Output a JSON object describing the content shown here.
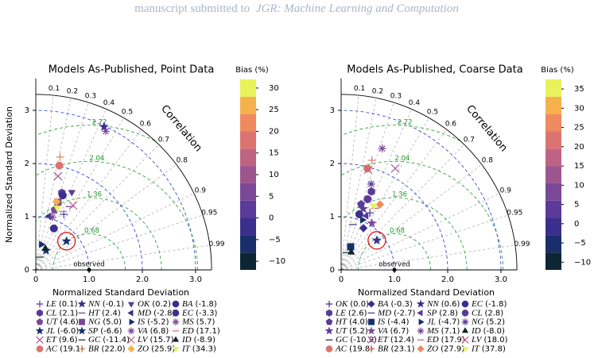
{
  "header": {
    "text": "manuscript submitted to",
    "journal": "JGR: Machine Learning and Computation"
  },
  "chart_data": [
    {
      "type": "taylor",
      "title": "Models As-Published, Point Data",
      "xlabel": "Normalized Standard Deviation",
      "ylabel": "Normalized Standard Deviation",
      "corr_label": "Correlation",
      "colorbar_label": "Bias (%)",
      "observed_label": "observed",
      "observed": 1,
      "highlight": "SP",
      "xlim": [
        0,
        3.3
      ],
      "ylim": [
        0,
        3.6
      ],
      "xticks": [
        0,
        {
          "value": 1,
          "label": "1.0"
        },
        {
          "value": 2,
          "label": "2.0"
        },
        {
          "value": 3,
          "label": "3.0"
        }
      ],
      "yticks": [
        0,
        1,
        2,
        3
      ],
      "corr_ticks": [
        0.1,
        0.2,
        0.3,
        0.4,
        0.5,
        0.6,
        0.7,
        0.8,
        0.9,
        0.95,
        0.99
      ],
      "rmsd_ticks": [
        0.68,
        1.36,
        2.04,
        2.72
      ],
      "colorbar": {
        "edges": [
          -12,
          -8,
          -4,
          0,
          4,
          8,
          12,
          16,
          20,
          24,
          28,
          32
        ],
        "colors": [
          "#0c2733",
          "#182f6b",
          "#3b2e8c",
          "#5b3a9a",
          "#7a4896",
          "#9d5590",
          "#be6482",
          "#db7470",
          "#ef8a5e",
          "#f6b14d",
          "#e8f25a"
        ],
        "ticks": [
          {
            "value": -10,
            "label": "−10"
          },
          {
            "value": -5,
            "label": "−5"
          },
          0,
          5,
          10,
          15,
          20,
          25,
          30
        ]
      },
      "series": [
        {
          "name": "LE",
          "bias": 0.1,
          "bias_label": "(0.1)",
          "std": 1.17,
          "corr": 0.45,
          "marker": "plus"
        },
        {
          "name": "CL",
          "bias": 2.1,
          "bias_label": "(2.1)",
          "std": 1.53,
          "corr": 0.32,
          "marker": "hexagon"
        },
        {
          "name": "UT",
          "bias": 4.6,
          "bias_label": "(4.6)",
          "std": 1.18,
          "corr": 0.3,
          "marker": "pentagon"
        },
        {
          "name": "JL",
          "bias": -6.0,
          "bias_label": "(-6.0)",
          "std": 0.41,
          "corr": 0.47,
          "marker": "star"
        },
        {
          "name": "ET",
          "bias": 9.6,
          "bias_label": "(9.6)",
          "std": 1.81,
          "corr": 0.23,
          "marker": "x"
        },
        {
          "name": "AC",
          "bias": 19.1,
          "bias_label": "(19.1)",
          "std": 2.01,
          "corr": 0.22,
          "marker": "circle"
        },
        {
          "name": "NN",
          "bias": -0.1,
          "bias_label": "(-0.1)",
          "std": 2.98,
          "corr": 0.43,
          "marker": "star"
        },
        {
          "name": "HT",
          "bias": 2.4,
          "bias_label": "(2.4)",
          "std": 1.35,
          "corr": 0.47,
          "marker": "hline"
        },
        {
          "name": "NG",
          "bias": 5.0,
          "bias_label": "(5.0)",
          "std": 1.34,
          "corr": 0.31,
          "marker": "square"
        },
        {
          "name": "SP",
          "bias": -6.6,
          "bias_label": "(-6.6)",
          "std": 0.79,
          "corr": 0.73,
          "marker": "star"
        },
        {
          "name": "GC",
          "bias": -11.4,
          "bias_label": "(-11.4)",
          "std": 0.25,
          "corr": 0.29,
          "marker": "hline"
        },
        {
          "name": "BR",
          "bias": 22.0,
          "bias_label": "(22.0)",
          "std": 2.17,
          "corr": 0.21,
          "marker": "plus"
        },
        {
          "name": "OK",
          "bias": 0.2,
          "bias_label": "(0.2)",
          "std": 1.61,
          "corr": 0.42,
          "marker": "tridown"
        },
        {
          "name": "MD",
          "bias": -2.8,
          "bias_label": "(-2.8)",
          "std": 1.04,
          "corr": 0.24,
          "marker": "trileft"
        },
        {
          "name": "IS",
          "bias": -5.2,
          "bias_label": "(-5.2)",
          "std": 0.49,
          "corr": 0.21,
          "marker": "triright"
        },
        {
          "name": "VA",
          "bias": 6.8,
          "bias_label": "(6.8)",
          "std": 2.92,
          "corr": 0.45,
          "marker": "asterisk"
        },
        {
          "name": "LV",
          "bias": 15.7,
          "bias_label": "(15.7)",
          "std": 1.4,
          "corr": 0.5,
          "marker": "x"
        },
        {
          "name": "ZO",
          "bias": 25.9,
          "bias_label": "(25.9)",
          "std": 1.34,
          "corr": 0.29,
          "marker": "diamond"
        },
        {
          "name": "BA",
          "bias": -1.8,
          "bias_label": "(-1.8)",
          "std": 1.49,
          "corr": 0.34,
          "marker": "circle"
        },
        {
          "name": "EC",
          "bias": -3.3,
          "bias_label": "(-3.3)",
          "std": 0.85,
          "corr": 0.4,
          "marker": "circle"
        },
        {
          "name": "MS",
          "bias": 5.7,
          "bias_label": "(5.7)",
          "std": 1.04,
          "corr": 0.3,
          "marker": "asterisk"
        },
        {
          "name": "ED",
          "bias": 17.1,
          "bias_label": "(17.1)",
          "std": 1.21,
          "corr": 0.42,
          "marker": "hline"
        },
        {
          "name": "ID",
          "bias": -8.9,
          "bias_label": "(-8.9)",
          "std": 0.44,
          "corr": 0.41,
          "marker": "triup"
        },
        {
          "name": "IT",
          "bias": 34.3,
          "bias_label": "(34.3)",
          "std": 1.23,
          "corr": 0.33,
          "marker": "tridown"
        }
      ]
    },
    {
      "type": "taylor",
      "title": "Models As-Published, Coarse Data",
      "xlabel": "Normalized Standard Deviation",
      "corr_label": "Correlation",
      "colorbar_label": "Bias (%)",
      "observed_label": "observed",
      "observed": 1,
      "highlight": "NN",
      "xlim": [
        0,
        3.3
      ],
      "ylim": [
        0,
        3.6
      ],
      "xticks": [
        0,
        {
          "value": 1,
          "label": "1.0"
        },
        {
          "value": 2,
          "label": "2.0"
        },
        {
          "value": 3,
          "label": "3.0"
        }
      ],
      "yticks": [
        0,
        1,
        2,
        3
      ],
      "corr_ticks": [
        0.1,
        0.2,
        0.3,
        0.4,
        0.5,
        0.6,
        0.7,
        0.8,
        0.9,
        0.95,
        0.99
      ],
      "rmsd_ticks": [
        0.68,
        1.36,
        2.04,
        2.72
      ],
      "colorbar": {
        "edges": [
          -12,
          -7.5,
          -3,
          1.5,
          6,
          10.5,
          15,
          19.5,
          24,
          28.5,
          33,
          37.5
        ],
        "colors": [
          "#0c2733",
          "#182f6b",
          "#3b2e8c",
          "#5b3a9a",
          "#7a4896",
          "#9d5590",
          "#be6482",
          "#db7470",
          "#ef8a5e",
          "#f6b14d",
          "#e8f25a"
        ],
        "ticks": [
          {
            "value": -10,
            "label": "−10"
          },
          {
            "value": -5,
            "label": "−5"
          },
          0,
          5,
          10,
          15,
          20,
          25,
          30,
          35
        ]
      },
      "series": [
        {
          "name": "OK",
          "bias": 0.0,
          "bias_label": "(0.0)",
          "std": 1.2,
          "corr": 0.45,
          "marker": "plus"
        },
        {
          "name": "LE",
          "bias": 2.6,
          "bias_label": "(2.6)",
          "std": 1.58,
          "corr": 0.36,
          "marker": "hexagon"
        },
        {
          "name": "HT",
          "bias": 4.0,
          "bias_label": "(4.0)",
          "std": 1.29,
          "corr": 0.29,
          "marker": "pentagon"
        },
        {
          "name": "UT",
          "bias": 5.2,
          "bias_label": "(5.2)",
          "std": 1.22,
          "corr": 0.34,
          "marker": "star"
        },
        {
          "name": "GC",
          "bias": -10.9,
          "bias_label": "(-10.9)",
          "std": 0.34,
          "corr": 0.3,
          "marker": "hline"
        },
        {
          "name": "AC",
          "bias": 19.8,
          "bias_label": "(19.8)",
          "std": 1.97,
          "corr": 0.25,
          "marker": "circle"
        },
        {
          "name": "BA",
          "bias": -0.3,
          "bias_label": "(-0.3)",
          "std": 0.89,
          "corr": 0.47,
          "marker": "diamond"
        },
        {
          "name": "MD",
          "bias": -2.7,
          "bias_label": "(-2.7)",
          "std": 0.88,
          "corr": 0.25,
          "marker": "hline"
        },
        {
          "name": "IS",
          "bias": -4.4,
          "bias_label": "(-4.4)",
          "std": 0.47,
          "corr": 0.38,
          "marker": "square"
        },
        {
          "name": "VA",
          "bias": 6.7,
          "bias_label": "(6.7)",
          "std": 1.05,
          "corr": 0.55,
          "marker": "star"
        },
        {
          "name": "ET",
          "bias": 12.4,
          "bias_label": "(12.4)",
          "std": 2.16,
          "corr": 0.47,
          "marker": "x"
        },
        {
          "name": "BR",
          "bias": 23.1,
          "bias_label": "(23.1)",
          "std": 2.14,
          "corr": 0.27,
          "marker": "plus"
        },
        {
          "name": "NN",
          "bias": 0.6,
          "bias_label": "(0.6)",
          "std": 0.87,
          "corr": 0.77,
          "marker": "star"
        },
        {
          "name": "SP",
          "bias": 2.8,
          "bias_label": "(2.8)",
          "std": 1.12,
          "corr": 0.42,
          "marker": "trileft"
        },
        {
          "name": "JL",
          "bias": -4.7,
          "bias_label": "(-4.7)",
          "std": 1.02,
          "corr": 0.39,
          "marker": "triright"
        },
        {
          "name": "MS",
          "bias": 7.1,
          "bias_label": "(7.1)",
          "std": 2.41,
          "corr": 0.32,
          "marker": "asterisk"
        },
        {
          "name": "ED",
          "bias": 17.9,
          "bias_label": "(17.9)",
          "std": 1.32,
          "corr": 0.48,
          "marker": "hline"
        },
        {
          "name": "ZO",
          "bias": 27.9,
          "bias_label": "(27.9)",
          "std": 1.43,
          "corr": 0.51,
          "marker": "diamond"
        },
        {
          "name": "EC",
          "bias": -1.8,
          "bias_label": "(-1.8)",
          "std": 1.1,
          "corr": 0.31,
          "marker": "circle"
        },
        {
          "name": "CL",
          "bias": 2.8,
          "bias_label": "(2.8)",
          "std": 1.42,
          "corr": 0.35,
          "marker": "circle"
        },
        {
          "name": "NG",
          "bias": 5.2,
          "bias_label": "(5.2)",
          "std": 1.71,
          "corr": 0.33,
          "marker": "asterisk"
        },
        {
          "name": "ID",
          "bias": -8.0,
          "bias_label": "(-8.0)",
          "std": 0.38,
          "corr": 0.5,
          "marker": "triup"
        },
        {
          "name": "LV",
          "bias": 18.0,
          "bias_label": "(18.0)",
          "std": 1.95,
          "corr": 0.26,
          "marker": "x"
        },
        {
          "name": "IT",
          "bias": 37.8,
          "bias_label": "(37.8)",
          "std": 1.35,
          "corr": 0.45,
          "marker": "tridown"
        }
      ]
    }
  ]
}
